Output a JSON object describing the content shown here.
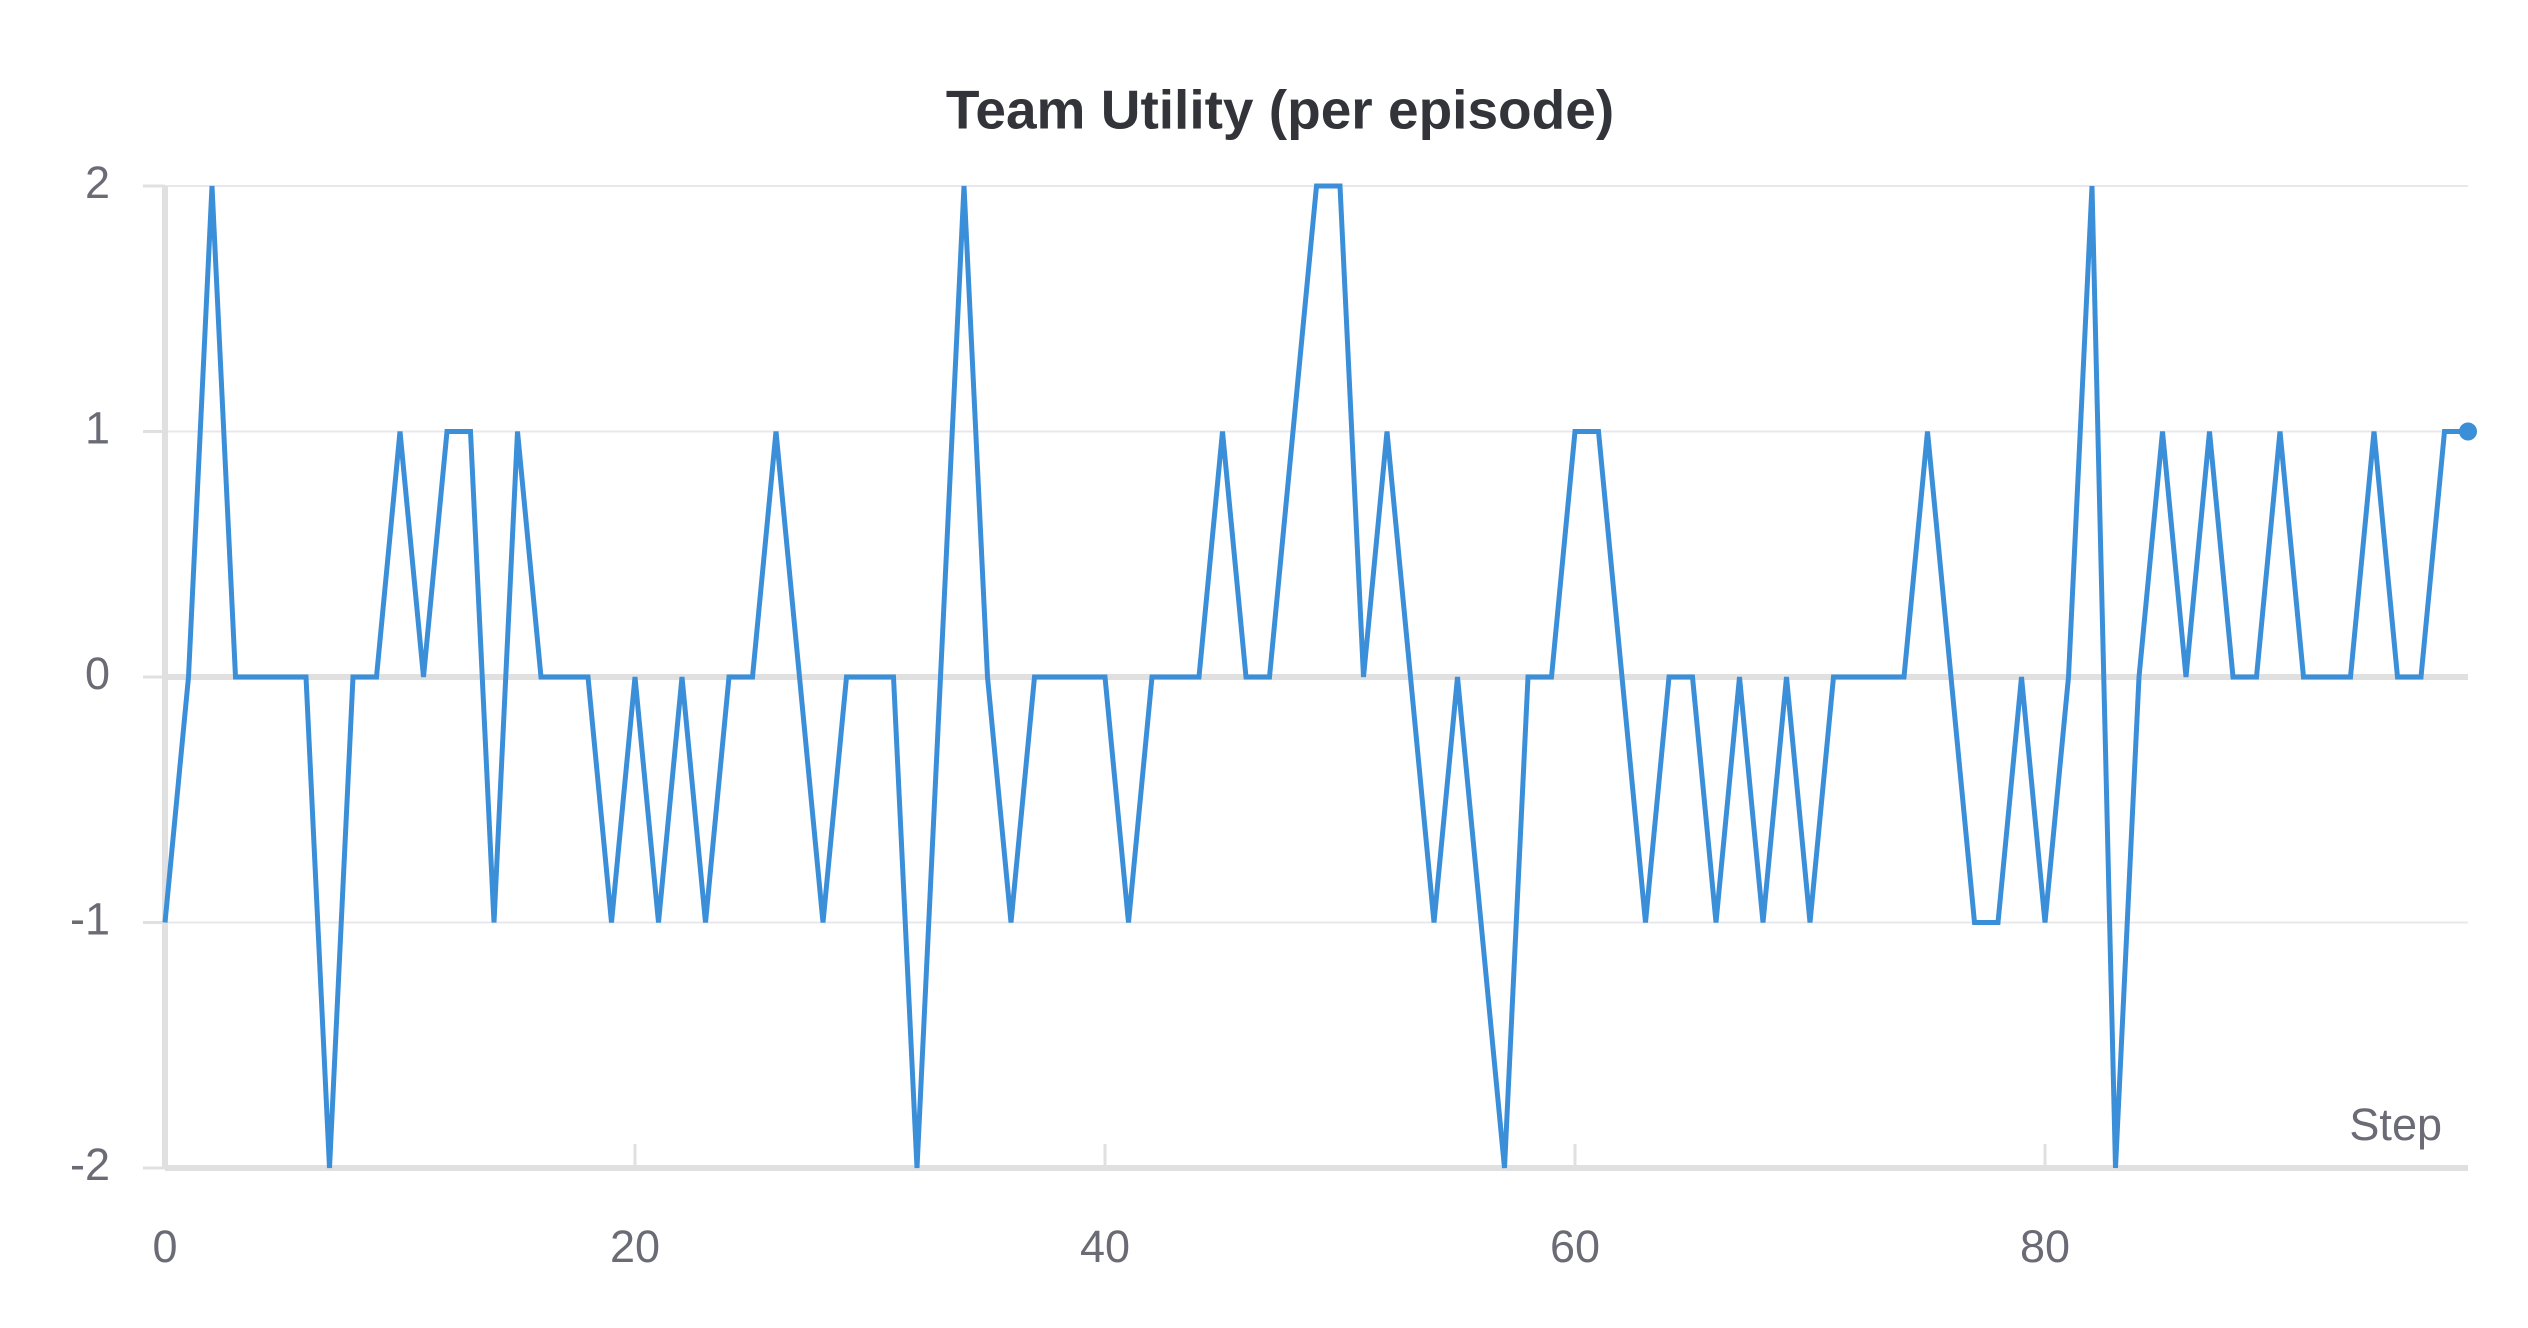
{
  "chart_data": {
    "type": "line",
    "title": "Team Utility (per episode)",
    "x_label": "Step",
    "x": [
      0,
      1,
      2,
      3,
      4,
      5,
      6,
      7,
      8,
      9,
      10,
      11,
      12,
      13,
      14,
      15,
      16,
      17,
      18,
      19,
      20,
      21,
      22,
      23,
      24,
      25,
      26,
      27,
      28,
      29,
      30,
      31,
      32,
      33,
      34,
      35,
      36,
      37,
      38,
      39,
      40,
      41,
      42,
      43,
      44,
      45,
      46,
      47,
      48,
      49,
      50,
      51,
      52,
      53,
      54,
      55,
      56,
      57,
      58,
      59,
      60,
      61,
      62,
      63,
      64,
      65,
      66,
      67,
      68,
      69,
      70,
      71,
      72,
      73,
      74,
      75,
      76,
      77,
      78,
      79,
      80,
      81,
      82,
      83,
      84,
      85,
      86,
      87,
      88,
      89,
      90,
      91,
      92,
      93,
      94,
      95,
      96,
      97,
      98
    ],
    "series": [
      {
        "name": "Team Utility",
        "color": "#3b8fd9",
        "values": [
          -1,
          0,
          2,
          0,
          0,
          0,
          0,
          -2,
          0,
          0,
          1,
          0,
          1,
          1,
          -1,
          1,
          0,
          0,
          0,
          -1,
          0,
          -1,
          0,
          -1,
          0,
          0,
          1,
          0,
          -1,
          0,
          0,
          0,
          -2,
          0,
          2,
          0,
          -1,
          0,
          0,
          0,
          0,
          -1,
          0,
          0,
          0,
          1,
          0,
          0,
          1,
          2,
          2,
          0,
          1,
          0,
          -1,
          0,
          -1,
          -2,
          0,
          0,
          1,
          1,
          0,
          -1,
          0,
          0,
          -1,
          0,
          -1,
          0,
          -1,
          0,
          0,
          0,
          0,
          1,
          0,
          -1,
          -1,
          0,
          -1,
          0,
          2,
          -2,
          0,
          1,
          0,
          1,
          0,
          0,
          1,
          0,
          0,
          0,
          1,
          0,
          0,
          1,
          1
        ]
      }
    ],
    "xlim": [
      0,
      98
    ],
    "xticks": [
      0,
      20,
      40,
      60,
      80
    ],
    "ylim": [
      -2,
      2
    ],
    "yticks": [
      -2,
      -1,
      0,
      1,
      2
    ],
    "grid": true
  }
}
